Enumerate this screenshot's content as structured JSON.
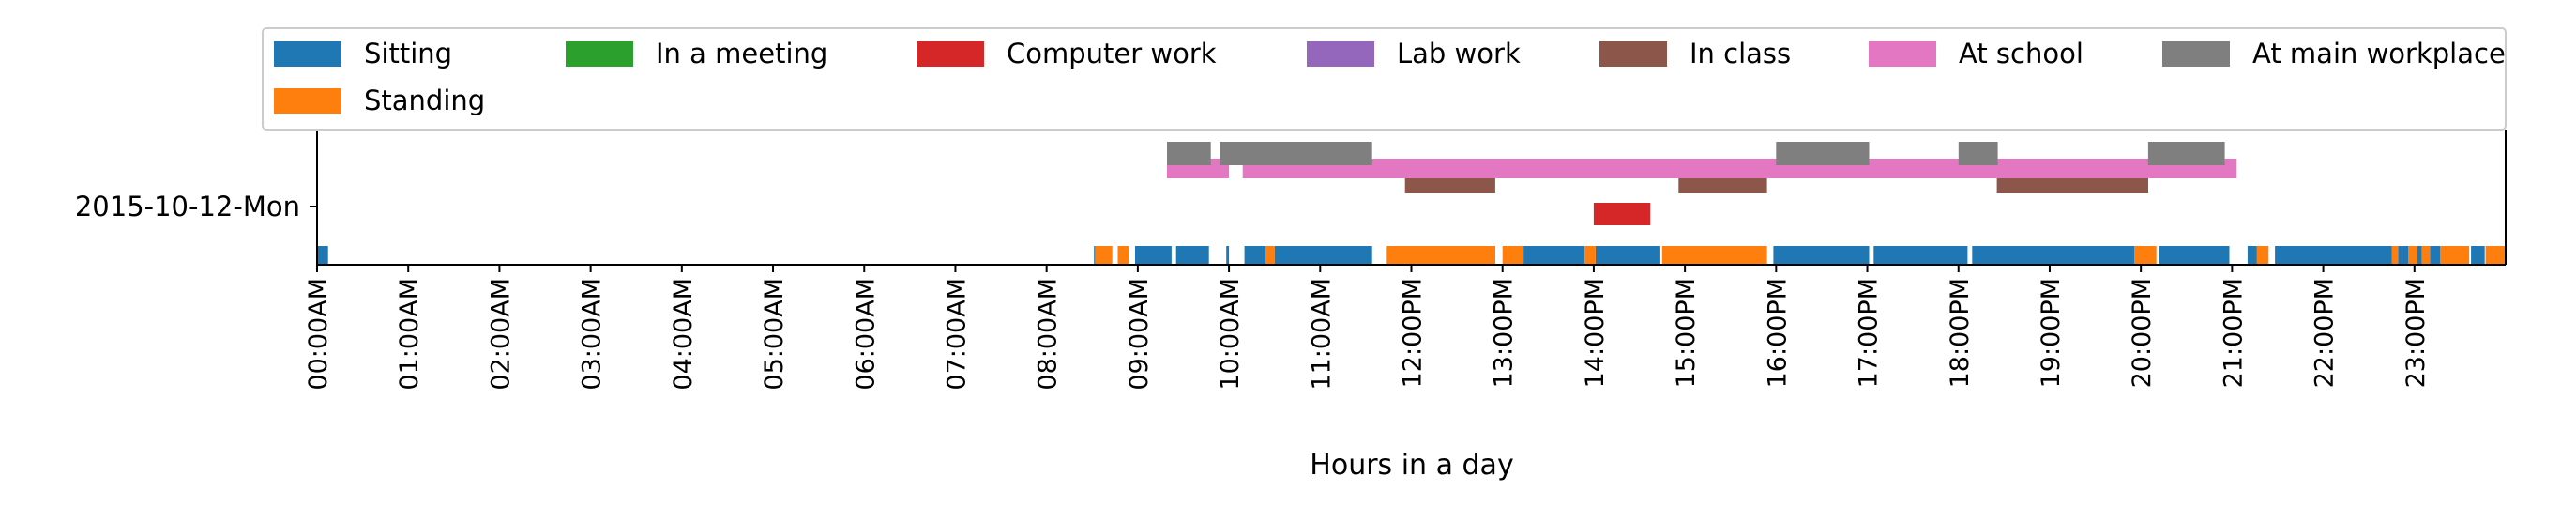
{
  "chart_data": {
    "type": "bar",
    "title": "",
    "xlabel": "Hours in a day",
    "ylabel": "",
    "xlim": [
      0,
      24
    ],
    "grid": false,
    "legend_position": "top",
    "rows": [
      "2015-10-12-Mon"
    ],
    "x_ticks": [
      "00:00AM",
      "01:00AM",
      "02:00AM",
      "03:00AM",
      "04:00AM",
      "05:00AM",
      "06:00AM",
      "07:00AM",
      "08:00AM",
      "09:00AM",
      "10:00AM",
      "11:00AM",
      "12:00PM",
      "13:00PM",
      "14:00PM",
      "15:00PM",
      "16:00PM",
      "17:00PM",
      "18:00PM",
      "19:00PM",
      "20:00PM",
      "21:00PM",
      "22:00PM",
      "23:00PM"
    ],
    "series": [
      {
        "name": "Sitting",
        "color": "#1f77b4",
        "level": 0,
        "intervals": [
          [
            0.0,
            0.12
          ],
          [
            8.52,
            8.55
          ],
          [
            8.97,
            9.37
          ],
          [
            9.42,
            9.78
          ],
          [
            9.97,
            10.0
          ],
          [
            10.17,
            10.4
          ],
          [
            10.5,
            11.57
          ],
          [
            13.23,
            13.9
          ],
          [
            14.02,
            14.73
          ],
          [
            15.97,
            17.02
          ],
          [
            17.07,
            18.1
          ],
          [
            18.15,
            19.93
          ],
          [
            20.2,
            20.97
          ],
          [
            21.17,
            21.37
          ],
          [
            21.47,
            22.75
          ],
          [
            22.82,
            22.93
          ],
          [
            23.03,
            23.08
          ],
          [
            23.17,
            23.28
          ],
          [
            23.62,
            23.77
          ],
          [
            23.97,
            24.0
          ]
        ]
      },
      {
        "name": "Standing",
        "color": "#ff7f0e",
        "level": 0,
        "intervals": [
          [
            8.53,
            8.72
          ],
          [
            8.78,
            8.9
          ],
          [
            10.4,
            10.5
          ],
          [
            11.73,
            12.92
          ],
          [
            13.0,
            13.23
          ],
          [
            13.9,
            14.02
          ],
          [
            14.75,
            15.9
          ],
          [
            19.93,
            20.17
          ],
          [
            21.27,
            21.4
          ],
          [
            22.75,
            22.82
          ],
          [
            22.93,
            23.03
          ],
          [
            23.08,
            23.17
          ],
          [
            23.28,
            23.6
          ],
          [
            23.78,
            24.0
          ]
        ]
      },
      {
        "name": "In a meeting",
        "color": "#2ca02c",
        "level": 1,
        "intervals": []
      },
      {
        "name": "Computer work",
        "color": "#d62728",
        "level": 1,
        "intervals": [
          [
            14.0,
            14.62
          ]
        ]
      },
      {
        "name": "Lab work",
        "color": "#9467bd",
        "level": 2,
        "intervals": []
      },
      {
        "name": "In class",
        "color": "#8c564b",
        "level": 2,
        "intervals": [
          [
            11.93,
            12.92
          ],
          [
            14.93,
            15.9
          ],
          [
            18.42,
            20.08
          ]
        ]
      },
      {
        "name": "At school",
        "color": "#e377c2",
        "level": 3,
        "intervals": [
          [
            9.32,
            10.0
          ],
          [
            10.15,
            21.05
          ]
        ]
      },
      {
        "name": "At main workplace",
        "color": "#7f7f7f",
        "level": 4,
        "intervals": [
          [
            9.32,
            9.8
          ],
          [
            9.9,
            11.57
          ],
          [
            16.0,
            17.02
          ],
          [
            18.0,
            18.43
          ],
          [
            20.08,
            20.92
          ]
        ]
      }
    ]
  }
}
